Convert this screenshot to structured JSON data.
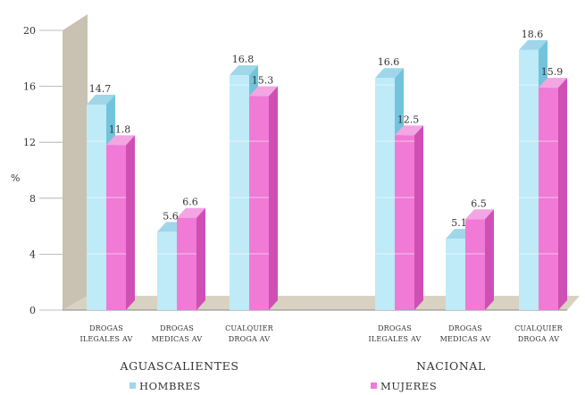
{
  "chart_data": {
    "type": "bar",
    "ylabel": "%",
    "ylim": [
      0,
      20
    ],
    "yticks": [
      "0",
      "4",
      "8",
      "12",
      "16",
      "20"
    ],
    "groups": [
      {
        "name": "AGUASCALIENTES",
        "categories": [
          [
            "DROGAS",
            "ILEGALES AV"
          ],
          [
            "DROGAS",
            "MEDICAS AV"
          ],
          [
            "CUALQUIER",
            "DROGA AV"
          ]
        ]
      },
      {
        "name": "NACIONAL",
        "categories": [
          [
            "DROGAS",
            "ILEGALES AV"
          ],
          [
            "DROGAS",
            "MEDICAS AV"
          ],
          [
            "CUALQUIER",
            "DROGA AV"
          ]
        ]
      }
    ],
    "series": [
      {
        "name": "HOMBRES",
        "values": [
          14.7,
          5.6,
          16.8,
          16.6,
          5.1,
          18.6
        ],
        "labels": [
          "14.7",
          "5.6",
          "16.8",
          "16.6",
          "5.1",
          "18.6"
        ]
      },
      {
        "name": "MUJERES",
        "values": [
          11.8,
          6.6,
          15.3,
          12.5,
          6.5,
          15.9
        ],
        "labels": [
          "11.8",
          "6.6",
          "15.3",
          "12.5",
          "6.5",
          "15.9"
        ]
      }
    ],
    "legend_position": "bottom",
    "grid": false
  },
  "colors": {
    "hombres_front": "#bfeaf7",
    "hombres_side": "#72c4dc",
    "hombres_top": "#9fd6ea",
    "mujeres_front": "#f07ad6",
    "mujeres_side": "#d04fb4",
    "mujeres_top": "#f3a6e3",
    "wall": "#c9c2b2",
    "floor": "#d9d2c2"
  }
}
